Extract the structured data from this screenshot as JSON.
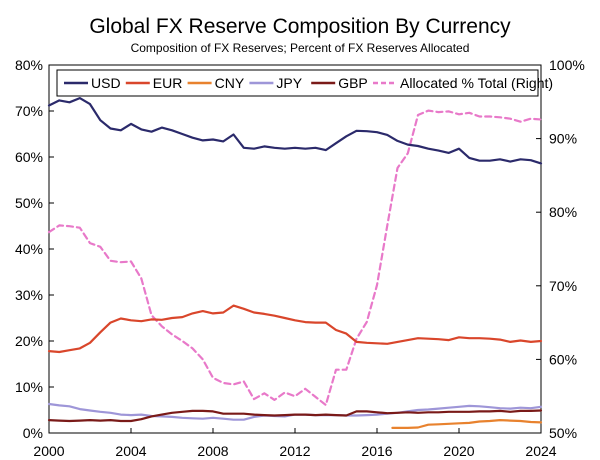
{
  "chart_data": {
    "type": "line",
    "title": "Global FX Reserve Composition By Currency",
    "subtitle": "Composition of FX Reserves; Percent of FX Reserves Allocated",
    "xlabel": "",
    "ylabel_left": "",
    "ylabel_right": "",
    "x_ticks": [
      "2000",
      "2004",
      "2008",
      "2012",
      "2016",
      "2020",
      "2024"
    ],
    "x_range": [
      2000,
      2024
    ],
    "left_axis": {
      "ylim": [
        0,
        80
      ],
      "ticks": [
        0,
        10,
        20,
        30,
        40,
        50,
        60,
        70,
        80
      ],
      "tick_labels": [
        "0%",
        "10%",
        "20%",
        "30%",
        "40%",
        "50%",
        "60%",
        "70%",
        "80%"
      ]
    },
    "right_axis": {
      "ylim": [
        50,
        100
      ],
      "ticks": [
        50,
        60,
        70,
        80,
        90,
        100
      ],
      "tick_labels": [
        "50%",
        "60%",
        "70%",
        "80%",
        "90%",
        "100%"
      ]
    },
    "grid": false,
    "legend_position": "top-left",
    "series": [
      {
        "name": "USD",
        "color": "#2b2a6b",
        "axis": "left",
        "dashed": false,
        "x": [
          2000,
          2000.5,
          2001,
          2001.5,
          2002,
          2002.5,
          2003,
          2003.5,
          2004,
          2004.5,
          2005,
          2005.5,
          2006,
          2006.5,
          2007,
          2007.5,
          2008,
          2008.5,
          2009,
          2009.5,
          2010,
          2010.5,
          2011,
          2011.5,
          2012,
          2012.5,
          2013,
          2013.5,
          2014,
          2014.5,
          2015,
          2015.5,
          2016,
          2016.5,
          2017,
          2017.5,
          2018,
          2018.5,
          2019,
          2019.5,
          2020,
          2020.5,
          2021,
          2021.5,
          2022,
          2022.5,
          2023,
          2023.5,
          2024
        ],
        "values": [
          71.2,
          72.3,
          71.9,
          72.8,
          71.5,
          68.0,
          66.2,
          65.8,
          67.2,
          66.0,
          65.5,
          66.4,
          65.8,
          65.0,
          64.2,
          63.6,
          63.8,
          63.4,
          64.9,
          62.0,
          61.8,
          62.3,
          62.0,
          61.8,
          62.0,
          61.8,
          62.0,
          61.5,
          63.0,
          64.5,
          65.7,
          65.6,
          65.4,
          64.8,
          63.5,
          62.7,
          62.4,
          61.8,
          61.4,
          60.9,
          61.8,
          59.8,
          59.2,
          59.2,
          59.5,
          59.0,
          59.5,
          59.3,
          58.6
        ]
      },
      {
        "name": "EUR",
        "color": "#d9462b",
        "axis": "left",
        "dashed": false,
        "x": [
          2000,
          2000.5,
          2001,
          2001.5,
          2002,
          2002.5,
          2003,
          2003.5,
          2004,
          2004.5,
          2005,
          2005.5,
          2006,
          2006.5,
          2007,
          2007.5,
          2008,
          2008.5,
          2009,
          2009.5,
          2010,
          2010.5,
          2011,
          2011.5,
          2012,
          2012.5,
          2013,
          2013.5,
          2014,
          2014.5,
          2015,
          2015.5,
          2016,
          2016.5,
          2017,
          2017.5,
          2018,
          2018.5,
          2019,
          2019.5,
          2020,
          2020.5,
          2021,
          2021.5,
          2022,
          2022.5,
          2023,
          2023.5,
          2024
        ],
        "values": [
          17.8,
          17.6,
          18.0,
          18.4,
          19.6,
          21.9,
          24.0,
          24.9,
          24.5,
          24.3,
          24.7,
          24.6,
          25.0,
          25.2,
          26.0,
          26.5,
          26.0,
          26.2,
          27.7,
          27.0,
          26.2,
          25.9,
          25.5,
          25.0,
          24.5,
          24.1,
          24.0,
          24.0,
          22.4,
          21.6,
          19.8,
          19.6,
          19.5,
          19.4,
          19.8,
          20.2,
          20.6,
          20.5,
          20.4,
          20.2,
          20.8,
          20.6,
          20.6,
          20.5,
          20.3,
          19.8,
          20.1,
          19.8,
          20.0
        ]
      },
      {
        "name": "CNY",
        "color": "#e8822e",
        "axis": "left",
        "dashed": false,
        "x": [
          2016.75,
          2017.5,
          2018,
          2018.5,
          2019,
          2019.5,
          2020,
          2020.5,
          2021,
          2021.5,
          2022,
          2022.5,
          2023,
          2023.5,
          2024
        ],
        "values": [
          1.1,
          1.1,
          1.2,
          1.8,
          1.9,
          2.0,
          2.1,
          2.2,
          2.5,
          2.6,
          2.8,
          2.7,
          2.6,
          2.4,
          2.3
        ]
      },
      {
        "name": "JPY",
        "color": "#9e96d8",
        "axis": "left",
        "dashed": false,
        "x": [
          2000,
          2000.5,
          2001,
          2001.5,
          2002,
          2002.5,
          2003,
          2003.5,
          2004,
          2004.5,
          2005,
          2005.5,
          2006,
          2006.5,
          2007,
          2007.5,
          2008,
          2008.5,
          2009,
          2009.5,
          2010,
          2010.5,
          2011,
          2011.5,
          2012,
          2012.5,
          2013,
          2013.5,
          2014,
          2014.5,
          2015,
          2015.5,
          2016,
          2016.5,
          2017,
          2017.5,
          2018,
          2018.5,
          2019,
          2019.5,
          2020,
          2020.5,
          2021,
          2021.5,
          2022,
          2022.5,
          2023,
          2023.5,
          2024
        ],
        "values": [
          6.3,
          6.0,
          5.8,
          5.2,
          4.9,
          4.6,
          4.4,
          4.0,
          3.9,
          4.0,
          3.7,
          3.6,
          3.5,
          3.3,
          3.2,
          3.1,
          3.3,
          3.1,
          2.9,
          2.9,
          3.5,
          3.8,
          3.7,
          3.6,
          4.0,
          4.0,
          3.9,
          3.9,
          3.9,
          3.8,
          3.8,
          3.9,
          4.0,
          4.2,
          4.4,
          4.7,
          5.0,
          5.1,
          5.3,
          5.5,
          5.7,
          5.9,
          5.8,
          5.6,
          5.4,
          5.3,
          5.5,
          5.4,
          5.7
        ]
      },
      {
        "name": "GBP",
        "color": "#7a1a18",
        "axis": "left",
        "dashed": false,
        "x": [
          2000,
          2000.5,
          2001,
          2001.5,
          2002,
          2002.5,
          2003,
          2003.5,
          2004,
          2004.5,
          2005,
          2005.5,
          2006,
          2006.5,
          2007,
          2007.5,
          2008,
          2008.5,
          2009,
          2009.5,
          2010,
          2010.5,
          2011,
          2011.5,
          2012,
          2012.5,
          2013,
          2013.5,
          2014,
          2014.5,
          2015,
          2015.5,
          2016,
          2016.5,
          2017,
          2017.5,
          2018,
          2018.5,
          2019,
          2019.5,
          2020,
          2020.5,
          2021,
          2021.5,
          2022,
          2022.5,
          2023,
          2023.5,
          2024
        ],
        "values": [
          2.8,
          2.7,
          2.6,
          2.7,
          2.8,
          2.7,
          2.8,
          2.6,
          2.6,
          3.0,
          3.6,
          4.0,
          4.4,
          4.6,
          4.8,
          4.8,
          4.7,
          4.2,
          4.2,
          4.2,
          4.0,
          3.9,
          3.8,
          3.9,
          4.0,
          4.0,
          3.9,
          4.0,
          3.9,
          3.8,
          4.7,
          4.7,
          4.5,
          4.3,
          4.4,
          4.5,
          4.4,
          4.5,
          4.5,
          4.6,
          4.6,
          4.6,
          4.7,
          4.7,
          4.8,
          4.6,
          4.8,
          4.8,
          4.9
        ]
      },
      {
        "name": "Allocated % Total (Right)",
        "color": "#e879c9",
        "axis": "right",
        "dashed": true,
        "x": [
          2000,
          2000.5,
          2001,
          2001.5,
          2002,
          2002.5,
          2003,
          2003.5,
          2004,
          2004.5,
          2005,
          2005.5,
          2006,
          2006.5,
          2007,
          2007.5,
          2008,
          2008.5,
          2009,
          2009.5,
          2010,
          2010.5,
          2011,
          2011.5,
          2012,
          2012.5,
          2013,
          2013.5,
          2014,
          2014.5,
          2015,
          2015.5,
          2016,
          2016.5,
          2017,
          2017.5,
          2018,
          2018.5,
          2019,
          2019.5,
          2020,
          2020.5,
          2021,
          2021.5,
          2022,
          2022.5,
          2023,
          2023.5,
          2024
        ],
        "values": [
          77.3,
          78.2,
          78.1,
          77.9,
          75.8,
          75.3,
          73.4,
          73.2,
          73.3,
          71.0,
          66.0,
          64.5,
          63.4,
          62.5,
          61.5,
          60.0,
          57.5,
          56.8,
          56.6,
          57.0,
          54.6,
          55.4,
          54.5,
          55.5,
          55.0,
          56.0,
          54.9,
          53.8,
          58.6,
          58.6,
          62.8,
          65.1,
          70.1,
          78.2,
          86.0,
          88.0,
          93.2,
          93.8,
          93.6,
          93.7,
          93.3,
          93.5,
          93.0,
          93.0,
          92.9,
          92.7,
          92.3,
          92.7,
          92.6
        ]
      }
    ]
  }
}
